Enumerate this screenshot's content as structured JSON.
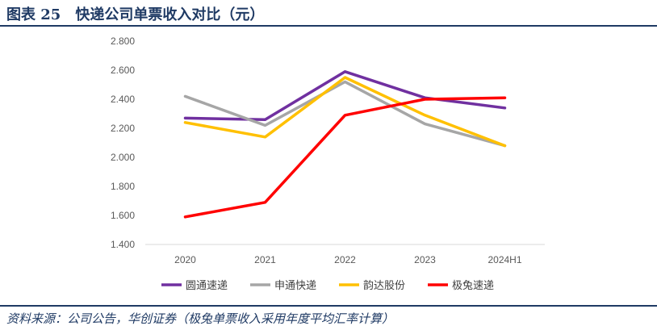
{
  "header": {
    "title": "图表 25　快递公司单票收入对比（元）"
  },
  "footer": {
    "source": "资料来源：公司公告，华创证券（极兔单票收入采用年度平均汇率计算）"
  },
  "chart_data": {
    "type": "line",
    "title": "",
    "xlabel": "",
    "ylabel": "",
    "categories": [
      "2020",
      "2021",
      "2022",
      "2023",
      "2024H1"
    ],
    "ylim": [
      1.4,
      2.8
    ],
    "yticks": [
      "1.400",
      "1.600",
      "1.800",
      "2.000",
      "2.200",
      "2.400",
      "2.600",
      "2.800"
    ],
    "legend_position": "bottom",
    "series": [
      {
        "name": "圆通速递",
        "color": "#7030a0",
        "values": [
          2.27,
          2.26,
          2.59,
          2.41,
          2.34
        ]
      },
      {
        "name": "申通快递",
        "color": "#a6a6a6",
        "values": [
          2.42,
          2.22,
          2.52,
          2.23,
          2.08
        ]
      },
      {
        "name": "韵达股份",
        "color": "#ffc000",
        "values": [
          2.24,
          2.14,
          2.55,
          2.29,
          2.08
        ]
      },
      {
        "name": "极兔速递",
        "color": "#ff0000",
        "values": [
          1.59,
          1.69,
          2.29,
          2.4,
          2.41
        ]
      }
    ]
  }
}
